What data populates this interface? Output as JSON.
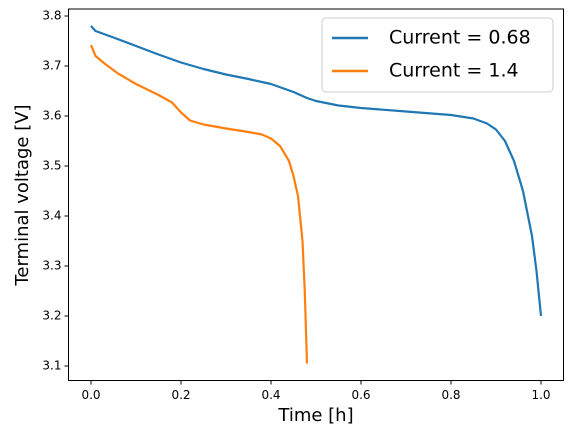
{
  "chart_data": {
    "type": "line",
    "xlabel": "Time [h]",
    "ylabel": "Terminal voltage [V]",
    "xlim": [
      -0.05,
      1.05
    ],
    "ylim": [
      3.071,
      3.814
    ],
    "xticks": [
      {
        "value": 0,
        "label": "0.0"
      },
      0.2,
      0.4,
      0.6,
      0.8,
      {
        "value": 1,
        "label": "1.0"
      }
    ],
    "yticks": [
      3.1,
      3.2,
      3.3,
      3.4,
      3.5,
      3.6,
      3.7,
      3.8
    ],
    "grid": false,
    "legend": "upper right",
    "series": [
      {
        "name": "Current = 0.68",
        "color": "#1f77b4",
        "x": [
          0,
          0.01,
          0.05,
          0.1,
          0.15,
          0.2,
          0.25,
          0.3,
          0.35,
          0.4,
          0.45,
          0.48,
          0.5,
          0.55,
          0.6,
          0.7,
          0.8,
          0.85,
          0.88,
          0.9,
          0.92,
          0.94,
          0.96,
          0.98,
          0.99,
          1.0
        ],
        "values": [
          3.78,
          3.77,
          3.757,
          3.74,
          3.723,
          3.707,
          3.694,
          3.683,
          3.674,
          3.664,
          3.648,
          3.636,
          3.63,
          3.621,
          3.616,
          3.609,
          3.602,
          3.595,
          3.585,
          3.573,
          3.55,
          3.51,
          3.45,
          3.36,
          3.29,
          3.2
        ]
      },
      {
        "name": "Current = 1.4",
        "color": "#ff7f0e",
        "x": [
          0,
          0.01,
          0.03,
          0.06,
          0.1,
          0.15,
          0.18,
          0.2,
          0.22,
          0.25,
          0.3,
          0.35,
          0.38,
          0.4,
          0.42,
          0.44,
          0.45,
          0.46,
          0.47,
          0.475,
          0.48
        ],
        "values": [
          3.742,
          3.72,
          3.705,
          3.685,
          3.664,
          3.642,
          3.627,
          3.607,
          3.591,
          3.583,
          3.575,
          3.568,
          3.563,
          3.555,
          3.54,
          3.51,
          3.48,
          3.44,
          3.35,
          3.25,
          3.105
        ]
      }
    ]
  }
}
